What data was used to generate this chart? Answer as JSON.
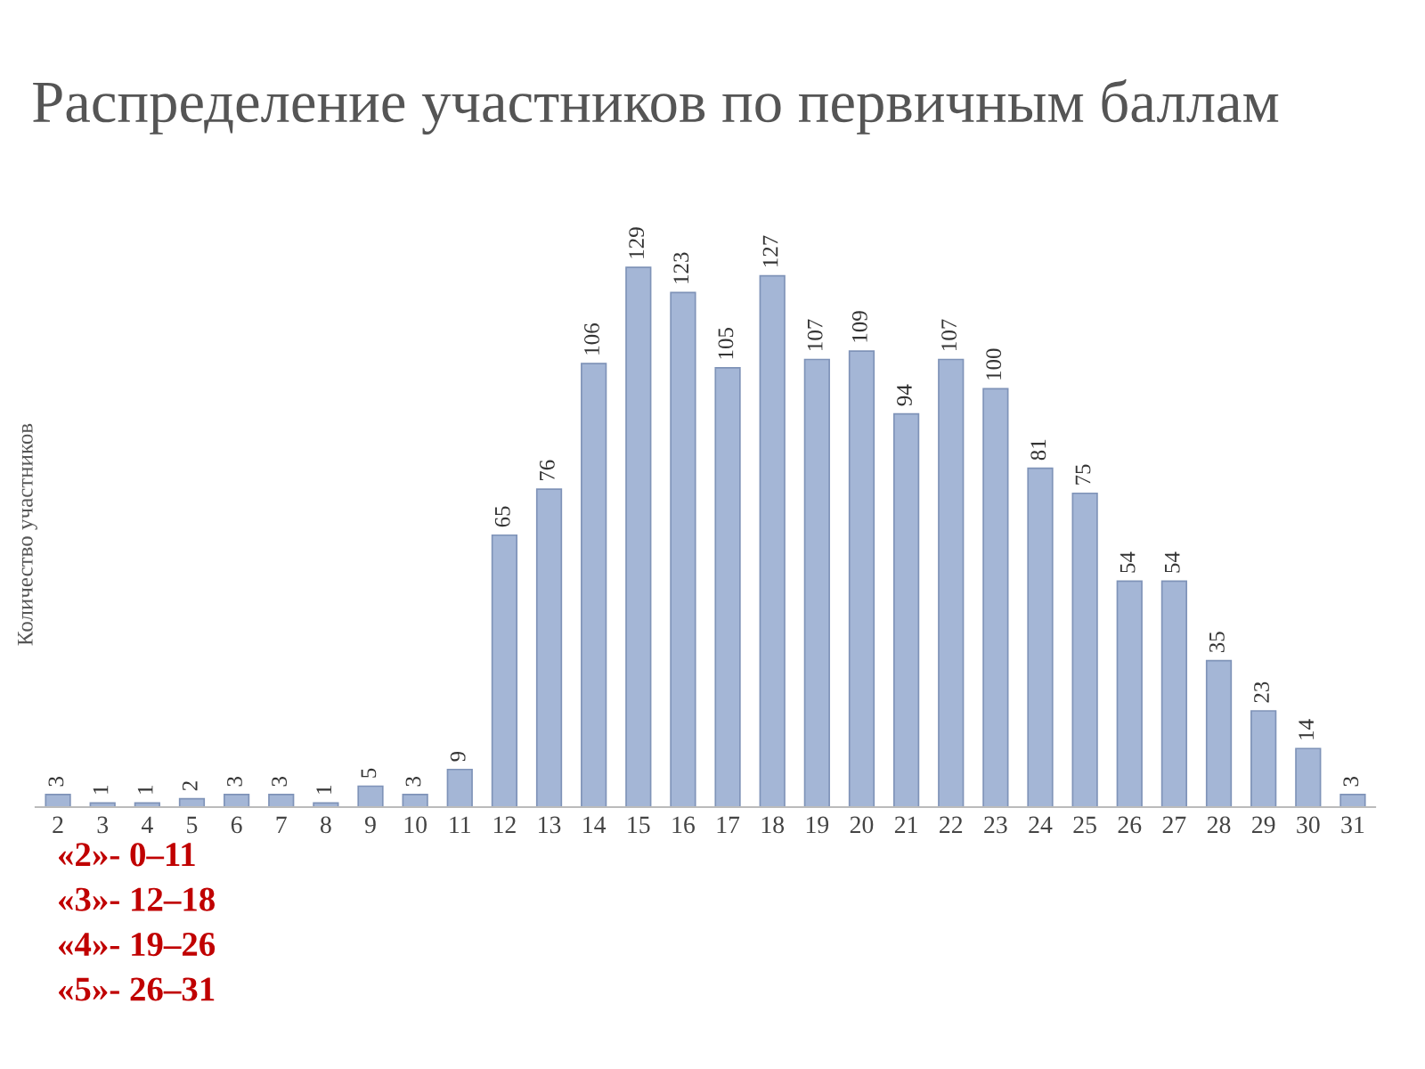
{
  "chart_data": {
    "type": "bar",
    "title": "Распределение участников по первичным баллам",
    "ylabel": "Количество участников",
    "categories": [
      "2",
      "3",
      "4",
      "5",
      "6",
      "7",
      "8",
      "9",
      "10",
      "11",
      "12",
      "13",
      "14",
      "15",
      "16",
      "17",
      "18",
      "19",
      "20",
      "21",
      "22",
      "23",
      "24",
      "25",
      "26",
      "27",
      "28",
      "29",
      "30",
      "31"
    ],
    "values": [
      3,
      1,
      1,
      2,
      3,
      3,
      1,
      5,
      3,
      9,
      65,
      76,
      106,
      129,
      123,
      105,
      127,
      107,
      109,
      94,
      107,
      100,
      81,
      75,
      54,
      54,
      35,
      23,
      14,
      3
    ],
    "color": "#a4b6d6",
    "data_labels": true,
    "grid": false,
    "legend": false,
    "annotations": [
      "«2»- 0–11",
      "«3»- 12–18",
      "«4»- 19–26",
      "«5»- 26–31"
    ]
  }
}
